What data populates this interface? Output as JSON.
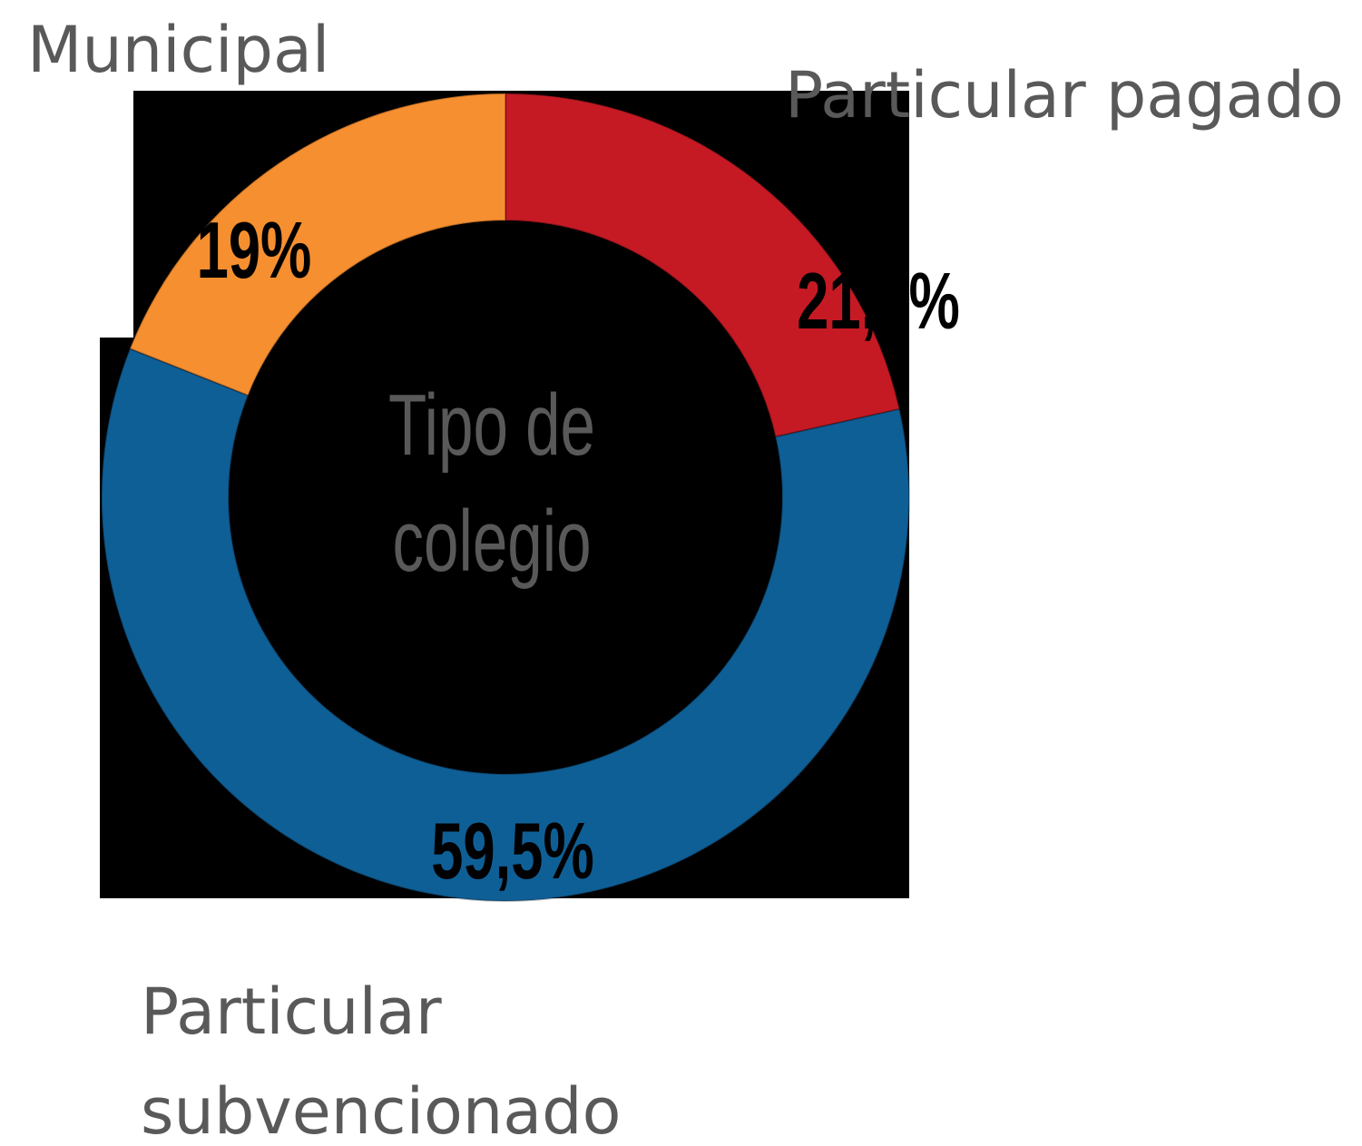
{
  "chart_data": {
    "type": "donut",
    "title": "Tipo de colegio",
    "categories": [
      "Particular pagado",
      "Particular subvencionado",
      "Municipal"
    ],
    "values": [
      21.5,
      59.5,
      19
    ],
    "value_labels": [
      "21,5%",
      "59,5%",
      "19%"
    ],
    "colors": [
      "#c51a24",
      "#0f5f97",
      "#f68f30"
    ]
  }
}
